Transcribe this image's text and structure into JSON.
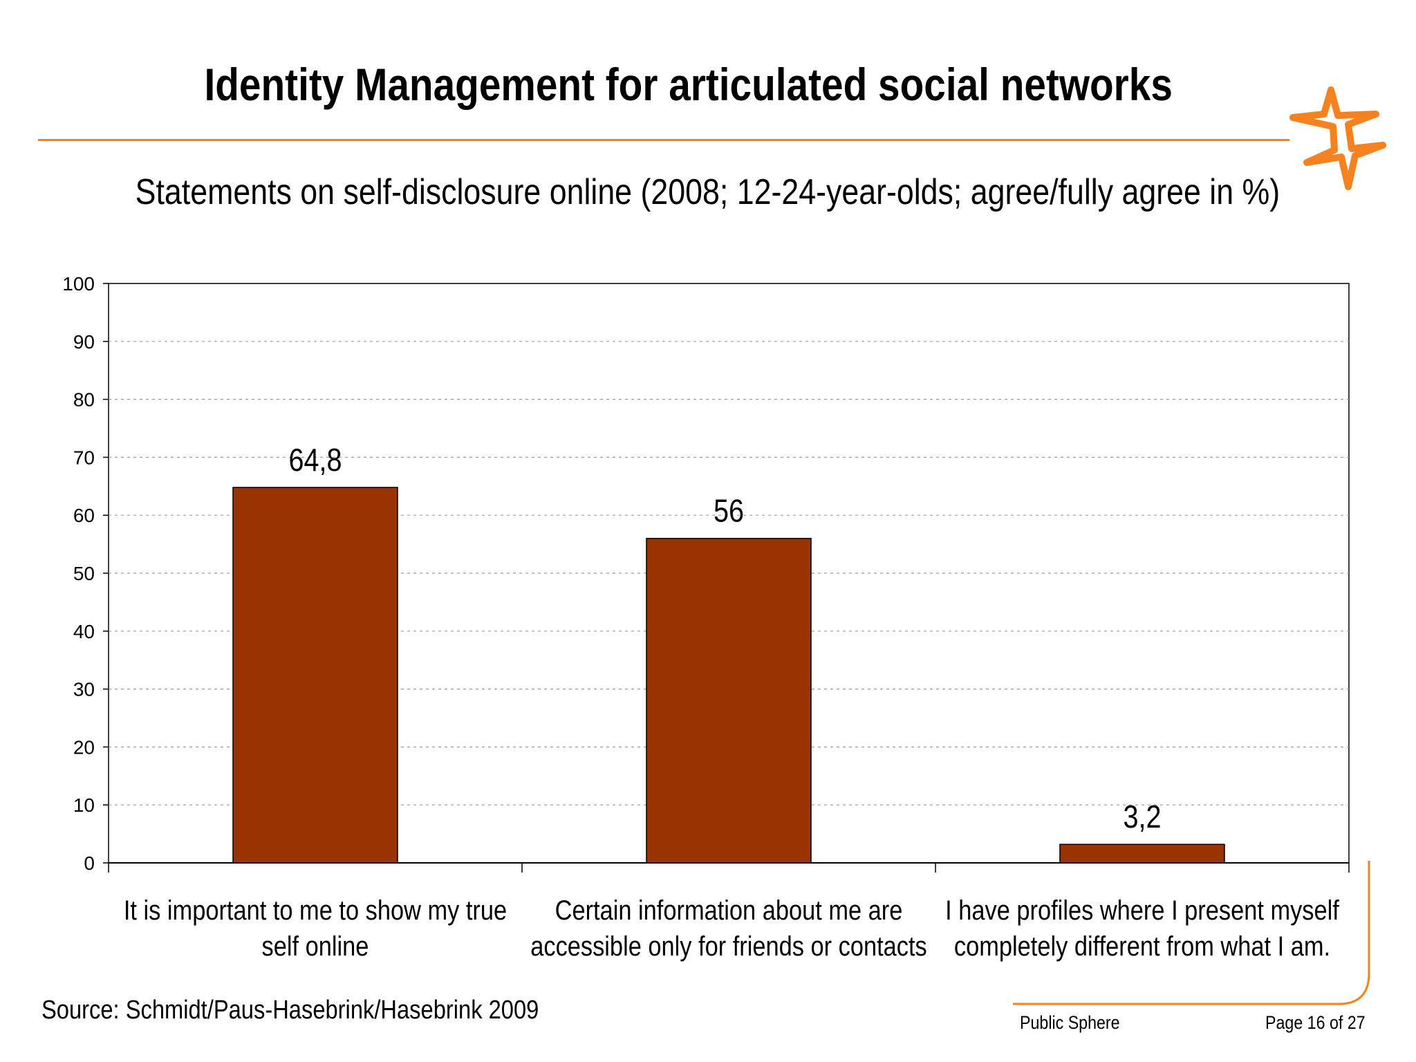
{
  "slide": {
    "title": "Identity Management for articulated social networks",
    "subtitle": "Statements on self-disclosure online (2008; 12-24-year-olds; agree/fully agree in %)",
    "source": "Source: Schmidt/Paus-Hasebrink/Hasebrink 2009",
    "footer_left": "Public Sphere",
    "footer_right": "Page 16 of 27",
    "accent_color": "#f58220",
    "logo_icon": "orange-star-logo-icon"
  },
  "chart_data": {
    "type": "bar",
    "title": "",
    "xlabel": "",
    "ylabel": "",
    "ylim": [
      0,
      100
    ],
    "yticks": [
      0,
      10,
      20,
      30,
      40,
      50,
      60,
      70,
      80,
      90,
      100
    ],
    "grid": true,
    "bar_color": "#993300",
    "categories": [
      [
        "It is important to me to show my true",
        "self online"
      ],
      [
        "Certain information about me are",
        "accessible only for friends or contacts"
      ],
      [
        "I have profiles where I present myself",
        "completely different from what I am."
      ]
    ],
    "values": [
      64.8,
      56,
      3.2
    ],
    "data_labels": [
      "64,8",
      "56",
      "3,2"
    ]
  }
}
